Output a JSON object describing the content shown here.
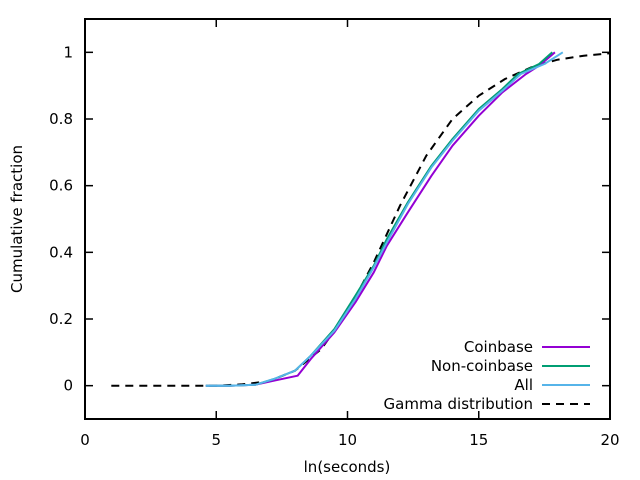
{
  "chart_data": {
    "type": "line",
    "xlabel": "ln(seconds)",
    "ylabel": "Cumulative fraction",
    "xlim": [
      0,
      20
    ],
    "ylim": [
      -0.1,
      1.1
    ],
    "x_ticks": [
      0,
      5,
      10,
      15,
      20
    ],
    "y_ticks": [
      0,
      0.2,
      0.4,
      0.6,
      0.8,
      1
    ],
    "x_tick_labels": [
      "0",
      "5",
      "10",
      "15",
      "20"
    ],
    "y_tick_labels": [
      "0",
      "0.2",
      "0.4",
      "0.6",
      "0.8",
      "1"
    ],
    "grid": false,
    "legend_position": "bottom-right",
    "series": [
      {
        "name": "Coinbase",
        "color": "#9400d3",
        "dash": "solid",
        "points": [
          [
            4.6,
            0
          ],
          [
            5.5,
            0
          ],
          [
            6.5,
            0.003
          ],
          [
            7.2,
            0.015
          ],
          [
            8.1,
            0.03
          ],
          [
            8.6,
            0.08
          ],
          [
            9.5,
            0.16
          ],
          [
            10.3,
            0.25
          ],
          [
            11.0,
            0.34
          ],
          [
            11.5,
            0.42
          ],
          [
            12.3,
            0.52
          ],
          [
            13.2,
            0.63
          ],
          [
            14.0,
            0.72
          ],
          [
            15.0,
            0.81
          ],
          [
            15.9,
            0.88
          ],
          [
            16.8,
            0.935
          ],
          [
            17.3,
            0.96
          ],
          [
            17.9,
            1.0
          ]
        ]
      },
      {
        "name": "Non-coinbase",
        "color": "#009e73",
        "dash": "solid",
        "points": [
          [
            4.6,
            0
          ],
          [
            5.5,
            0
          ],
          [
            6.5,
            0.003
          ],
          [
            7.2,
            0.02
          ],
          [
            8.0,
            0.045
          ],
          [
            8.6,
            0.09
          ],
          [
            9.5,
            0.17
          ],
          [
            10.3,
            0.27
          ],
          [
            11.0,
            0.36
          ],
          [
            11.5,
            0.44
          ],
          [
            12.3,
            0.55
          ],
          [
            13.2,
            0.66
          ],
          [
            14.0,
            0.74
          ],
          [
            15.0,
            0.83
          ],
          [
            15.9,
            0.89
          ],
          [
            16.5,
            0.935
          ],
          [
            17.3,
            0.965
          ],
          [
            17.8,
            1.0
          ]
        ]
      },
      {
        "name": "All",
        "color": "#56b4e9",
        "dash": "solid",
        "points": [
          [
            4.6,
            0
          ],
          [
            5.5,
            0
          ],
          [
            6.5,
            0.003
          ],
          [
            7.2,
            0.02
          ],
          [
            8.0,
            0.045
          ],
          [
            8.6,
            0.09
          ],
          [
            9.5,
            0.165
          ],
          [
            10.3,
            0.26
          ],
          [
            11.0,
            0.355
          ],
          [
            11.5,
            0.43
          ],
          [
            12.3,
            0.545
          ],
          [
            13.2,
            0.655
          ],
          [
            14.0,
            0.735
          ],
          [
            15.0,
            0.825
          ],
          [
            15.9,
            0.885
          ],
          [
            16.6,
            0.935
          ],
          [
            17.5,
            0.965
          ],
          [
            18.2,
            1.0
          ]
        ]
      },
      {
        "name": "Gamma distribution",
        "color": "#000000",
        "dash": "8,6",
        "points": [
          [
            1.0,
            0
          ],
          [
            5.0,
            0
          ],
          [
            6.0,
            0.004
          ],
          [
            7.0,
            0.013
          ],
          [
            8.0,
            0.045
          ],
          [
            9.0,
            0.11
          ],
          [
            10.0,
            0.22
          ],
          [
            11.0,
            0.37
          ],
          [
            12.0,
            0.54
          ],
          [
            13.0,
            0.69
          ],
          [
            14.0,
            0.8
          ],
          [
            15.0,
            0.87
          ],
          [
            16.0,
            0.92
          ],
          [
            17.0,
            0.955
          ],
          [
            18.0,
            0.978
          ],
          [
            19.0,
            0.99
          ],
          [
            20.0,
            0.997
          ]
        ]
      }
    ]
  }
}
